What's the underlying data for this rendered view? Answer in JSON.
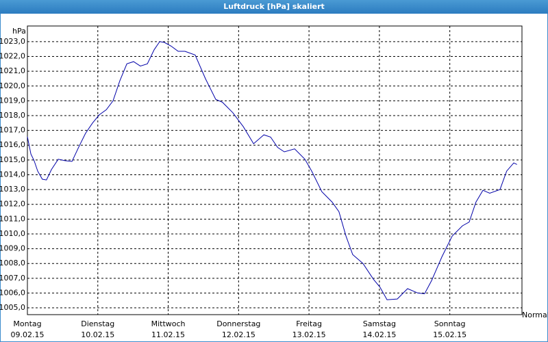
{
  "chart_data": {
    "type": "line",
    "title": "Luftdruck [hPa] skaliert",
    "y_axis_label": "hPa",
    "x_axis_label": "Normal",
    "x": [
      0,
      1.2,
      2.3,
      3.5,
      5.1,
      6.5,
      8.2,
      10.5,
      12.8,
      15.2,
      17.5,
      19.8,
      22.2,
      24.5,
      26.9,
      29.2,
      31.5,
      33.9,
      36.2,
      38.5,
      40.9,
      43.2,
      45.1,
      46.7,
      49.0,
      51.4,
      53.7,
      57.2,
      60.7,
      64.2,
      66.5,
      70.0,
      73.6,
      77.1,
      80.6,
      82.9,
      85.3,
      87.6,
      91.1,
      94.6,
      96.9,
      100.4,
      103.9,
      106.2,
      108.6,
      110.9,
      114.4,
      117.9,
      120.2,
      122.6,
      126.1,
      129.6,
      133.1,
      135.4,
      137.8,
      141.3,
      144.8,
      148.3,
      150.6,
      152.9,
      155.3,
      157.6,
      161.1,
      163.4,
      165.8,
      166.9
    ],
    "series": [
      {
        "name": "Luftdruck",
        "color": "#0000a8",
        "values": [
          1016.57,
          1015.4,
          1014.95,
          1014.25,
          1013.7,
          1013.65,
          1014.35,
          1015.05,
          1014.95,
          1014.9,
          1015.87,
          1016.8,
          1017.5,
          1018.05,
          1018.4,
          1019.0,
          1020.35,
          1021.5,
          1021.65,
          1021.35,
          1021.5,
          1022.45,
          1023.0,
          1022.95,
          1022.7,
          1022.35,
          1022.35,
          1022.1,
          1020.5,
          1019.1,
          1018.9,
          1018.2,
          1017.25,
          1016.1,
          1016.7,
          1016.55,
          1015.85,
          1015.55,
          1015.75,
          1015.05,
          1014.25,
          1012.85,
          1012.15,
          1011.5,
          1009.85,
          1008.6,
          1008.0,
          1006.95,
          1006.4,
          1005.55,
          1005.6,
          1006.3,
          1006.0,
          1005.95,
          1006.85,
          1008.45,
          1009.85,
          1010.55,
          1010.8,
          1012.15,
          1012.95,
          1012.75,
          1013.0,
          1014.25,
          1014.8,
          1014.7
        ]
      }
    ],
    "xlim": [
      0,
      168.6
    ],
    "ylim": [
      1004.54,
      1024.06
    ],
    "xticks": [
      {
        "value": 0,
        "label": [
          "Montag",
          "09.02.15"
        ]
      },
      {
        "value": 24,
        "label": [
          "Dienstag",
          "10.02.15"
        ]
      },
      {
        "value": 48,
        "label": [
          "Mittwoch",
          "11.02.15"
        ]
      },
      {
        "value": 72,
        "label": [
          "Donnerstag",
          "12.02.15"
        ]
      },
      {
        "value": 96,
        "label": [
          "Freitag",
          "13.02.15"
        ]
      },
      {
        "value": 120,
        "label": [
          "Samstag",
          "14.02.15"
        ]
      },
      {
        "value": 144,
        "label": [
          "Sonntag",
          "15.02.15"
        ]
      }
    ],
    "yticks": [
      {
        "value": 1005,
        "label": "1005,0"
      },
      {
        "value": 1006,
        "label": "1006,0"
      },
      {
        "value": 1007,
        "label": "1007,0"
      },
      {
        "value": 1008,
        "label": "1008,0"
      },
      {
        "value": 1009,
        "label": "1009,0"
      },
      {
        "value": 1010,
        "label": "1010,0"
      },
      {
        "value": 1011,
        "label": "1011,0"
      },
      {
        "value": 1012,
        "label": "1012,0"
      },
      {
        "value": 1013,
        "label": "1013,0"
      },
      {
        "value": 1014,
        "label": "1014,0"
      },
      {
        "value": 1015,
        "label": "1015,0"
      },
      {
        "value": 1016,
        "label": "1016,0"
      },
      {
        "value": 1017,
        "label": "1017,0"
      },
      {
        "value": 1018,
        "label": "1018,0"
      },
      {
        "value": 1019,
        "label": "1019,0"
      },
      {
        "value": 1020,
        "label": "1020,0"
      },
      {
        "value": 1021,
        "label": "1021,0"
      },
      {
        "value": 1022,
        "label": "1022,0"
      },
      {
        "value": 1023,
        "label": "1023,0"
      }
    ],
    "grid": true
  }
}
